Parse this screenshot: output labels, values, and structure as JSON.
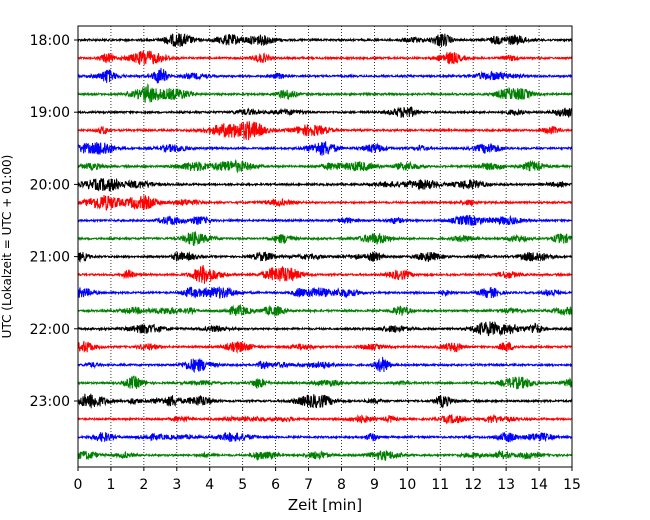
{
  "chart_data": {
    "type": "line",
    "title": "",
    "xlabel": "Zeit  [min]",
    "ylabel": "UTC (Lokalzeit = UTC + 01:00)",
    "xlim": [
      0,
      15
    ],
    "x_ticks": [
      0,
      1,
      2,
      3,
      4,
      5,
      6,
      7,
      8,
      9,
      10,
      11,
      12,
      13,
      14,
      15
    ],
    "y_ticks": [
      "18:00",
      "19:00",
      "20:00",
      "21:00",
      "22:00",
      "23:00"
    ],
    "grid": "vertical dotted",
    "trace_start": "18:00",
    "trace_interval_min": 15,
    "trace_count": 24,
    "trace_colors": [
      "#000000",
      "#ff0000",
      "#0000ff",
      "#008000"
    ]
  }
}
